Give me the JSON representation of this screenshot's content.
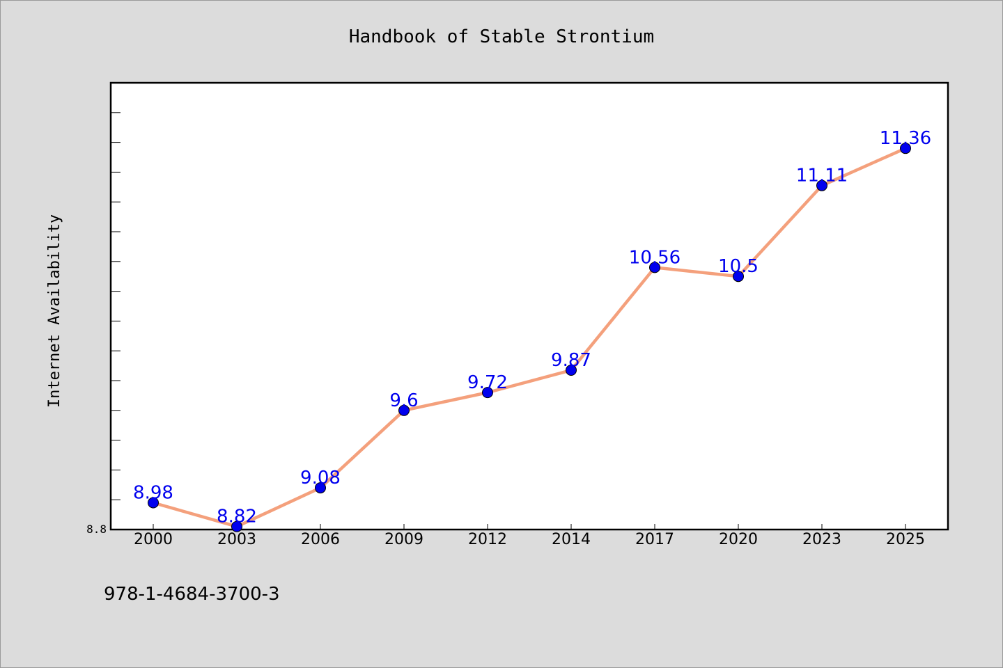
{
  "chart_data": {
    "type": "line",
    "title": "Handbook of Stable Strontium",
    "xlabel": "",
    "ylabel": "Internet Availability",
    "categories": [
      "2000",
      "2003",
      "2006",
      "2009",
      "2012",
      "2014",
      "2017",
      "2020",
      "2023",
      "2025"
    ],
    "series": [
      {
        "values": [
          8.98,
          8.82,
          9.08,
          9.6,
          9.72,
          9.87,
          10.56,
          10.5,
          11.11,
          11.36
        ],
        "data_labels": [
          "8.98",
          "8.82",
          "9.08",
          "9.6",
          "9.72",
          "9.87",
          "10.56",
          "10.5",
          "11.11",
          "11.36"
        ]
      }
    ],
    "ylim": [
      8.8,
      11.8
    ],
    "ytick_labels": [
      "8.8"
    ],
    "grid": false,
    "legend": "none",
    "colors": {
      "line": "#f4a07c",
      "marker": "#0000ee",
      "data_label": "#0000ee",
      "plot_background": "#ffffff",
      "figure_background": "#dcdcdc"
    }
  },
  "footer": {
    "isbn": "978-1-4684-3700-3"
  }
}
